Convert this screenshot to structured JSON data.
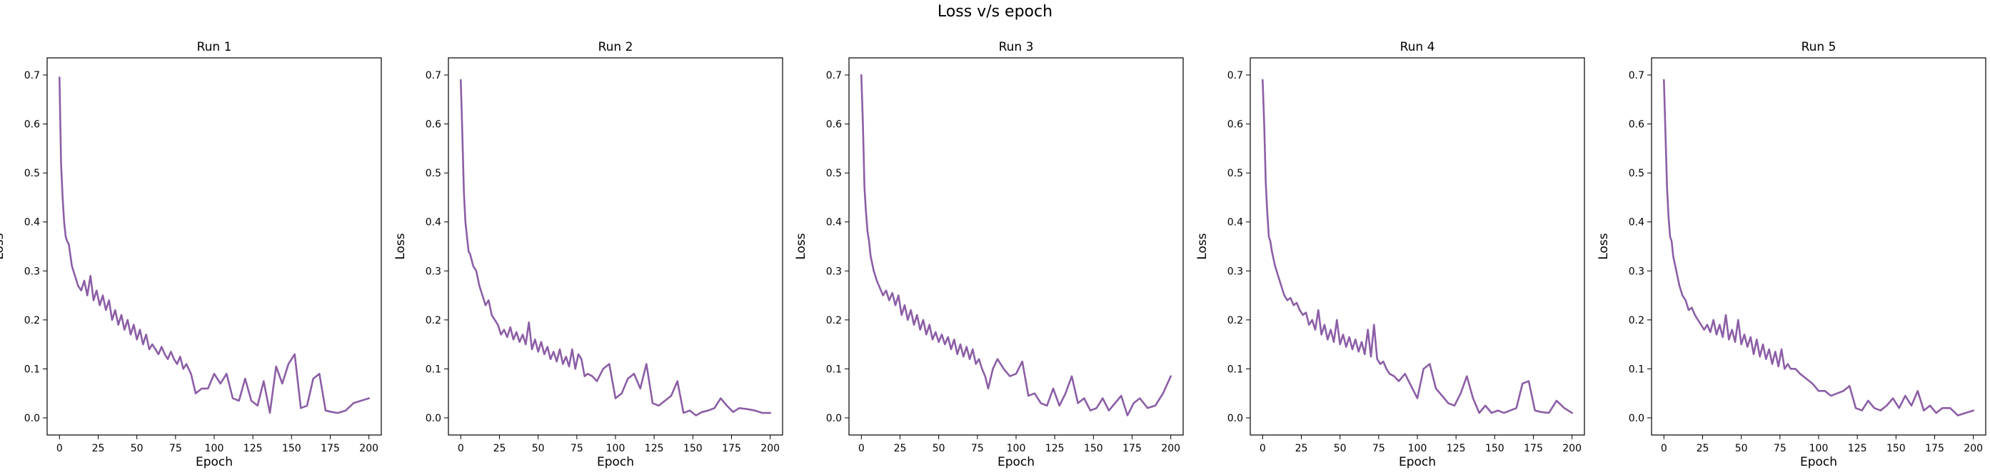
{
  "figure": {
    "suptitle": "Loss v/s epoch"
  },
  "chart_data": [
    {
      "type": "line",
      "title": "Run 1",
      "xlabel": "Epoch",
      "ylabel": "Loss",
      "xlim": [
        -8,
        208
      ],
      "ylim": [
        -0.035,
        0.735
      ],
      "xticks": [
        0,
        25,
        50,
        75,
        100,
        125,
        150,
        175,
        200
      ],
      "yticks": [
        0.0,
        0.1,
        0.2,
        0.3,
        0.4,
        0.5,
        0.6,
        0.7
      ],
      "color": "#8c5ea6",
      "grid": false,
      "series": [
        {
          "x": [
            0,
            1,
            2,
            3,
            4,
            5,
            6,
            8,
            10,
            12,
            14,
            16,
            18,
            20,
            22,
            24,
            26,
            28,
            30,
            32,
            34,
            36,
            38,
            40,
            42,
            44,
            46,
            48,
            50,
            52,
            54,
            56,
            58,
            60,
            62,
            64,
            66,
            68,
            70,
            72,
            74,
            76,
            78,
            80,
            82,
            85,
            88,
            92,
            96,
            100,
            104,
            108,
            112,
            116,
            120,
            124,
            128,
            132,
            136,
            140,
            144,
            148,
            152,
            156,
            160,
            164,
            168,
            172,
            176,
            180,
            185,
            190,
            195,
            200
          ],
          "y": [
            0.695,
            0.52,
            0.45,
            0.4,
            0.37,
            0.36,
            0.355,
            0.31,
            0.29,
            0.27,
            0.26,
            0.28,
            0.25,
            0.29,
            0.24,
            0.26,
            0.23,
            0.25,
            0.22,
            0.24,
            0.2,
            0.22,
            0.19,
            0.21,
            0.18,
            0.2,
            0.17,
            0.19,
            0.16,
            0.18,
            0.15,
            0.17,
            0.14,
            0.15,
            0.14,
            0.13,
            0.145,
            0.13,
            0.12,
            0.135,
            0.12,
            0.11,
            0.125,
            0.1,
            0.11,
            0.09,
            0.05,
            0.06,
            0.06,
            0.09,
            0.07,
            0.09,
            0.04,
            0.035,
            0.08,
            0.035,
            0.025,
            0.075,
            0.01,
            0.105,
            0.07,
            0.11,
            0.13,
            0.02,
            0.025,
            0.08,
            0.09,
            0.015,
            0.012,
            0.01,
            0.015,
            0.03,
            0.035,
            0.04
          ]
        }
      ]
    },
    {
      "type": "line",
      "title": "Run 2",
      "xlabel": "Epoch",
      "ylabel": "Loss",
      "xlim": [
        -8,
        208
      ],
      "ylim": [
        -0.035,
        0.735
      ],
      "xticks": [
        0,
        25,
        50,
        75,
        100,
        125,
        150,
        175,
        200
      ],
      "yticks": [
        0.0,
        0.1,
        0.2,
        0.3,
        0.4,
        0.5,
        0.6,
        0.7
      ],
      "color": "#8c5ea6",
      "grid": false,
      "series": [
        {
          "x": [
            0,
            1,
            2,
            3,
            4,
            5,
            6,
            8,
            10,
            12,
            14,
            16,
            18,
            20,
            22,
            24,
            26,
            28,
            30,
            32,
            34,
            36,
            38,
            40,
            42,
            44,
            46,
            48,
            50,
            52,
            54,
            56,
            58,
            60,
            62,
            64,
            66,
            68,
            70,
            72,
            74,
            76,
            78,
            80,
            82,
            85,
            88,
            92,
            96,
            100,
            104,
            108,
            112,
            116,
            120,
            124,
            128,
            132,
            136,
            140,
            144,
            148,
            152,
            156,
            160,
            164,
            168,
            172,
            176,
            180,
            185,
            190,
            195,
            200
          ],
          "y": [
            0.69,
            0.58,
            0.46,
            0.4,
            0.37,
            0.34,
            0.335,
            0.31,
            0.3,
            0.27,
            0.25,
            0.23,
            0.24,
            0.21,
            0.2,
            0.19,
            0.17,
            0.18,
            0.165,
            0.185,
            0.16,
            0.175,
            0.155,
            0.17,
            0.15,
            0.195,
            0.14,
            0.16,
            0.135,
            0.155,
            0.13,
            0.145,
            0.12,
            0.135,
            0.115,
            0.14,
            0.11,
            0.125,
            0.105,
            0.14,
            0.1,
            0.13,
            0.12,
            0.085,
            0.09,
            0.085,
            0.075,
            0.1,
            0.11,
            0.04,
            0.05,
            0.08,
            0.09,
            0.06,
            0.11,
            0.03,
            0.025,
            0.035,
            0.045,
            0.075,
            0.01,
            0.015,
            0.005,
            0.012,
            0.015,
            0.02,
            0.04,
            0.025,
            0.012,
            0.02,
            0.018,
            0.015,
            0.01,
            0.01
          ]
        }
      ]
    },
    {
      "type": "line",
      "title": "Run 3",
      "xlabel": "Epoch",
      "ylabel": "Loss",
      "xlim": [
        -8,
        208
      ],
      "ylim": [
        -0.035,
        0.735
      ],
      "xticks": [
        0,
        25,
        50,
        75,
        100,
        125,
        150,
        175,
        200
      ],
      "yticks": [
        0.0,
        0.1,
        0.2,
        0.3,
        0.4,
        0.5,
        0.6,
        0.7
      ],
      "color": "#8c5ea6",
      "grid": false,
      "series": [
        {
          "x": [
            0,
            1,
            2,
            3,
            4,
            5,
            6,
            8,
            10,
            12,
            14,
            16,
            18,
            20,
            22,
            24,
            26,
            28,
            30,
            32,
            34,
            36,
            38,
            40,
            42,
            44,
            46,
            48,
            50,
            52,
            54,
            56,
            58,
            60,
            62,
            64,
            66,
            68,
            70,
            72,
            74,
            76,
            78,
            80,
            82,
            85,
            88,
            92,
            96,
            100,
            104,
            108,
            112,
            116,
            120,
            124,
            128,
            132,
            136,
            140,
            144,
            148,
            152,
            156,
            160,
            164,
            168,
            172,
            176,
            180,
            185,
            190,
            195,
            200
          ],
          "y": [
            0.7,
            0.6,
            0.47,
            0.42,
            0.38,
            0.36,
            0.33,
            0.3,
            0.28,
            0.265,
            0.25,
            0.26,
            0.24,
            0.255,
            0.23,
            0.25,
            0.21,
            0.23,
            0.2,
            0.22,
            0.19,
            0.21,
            0.18,
            0.2,
            0.17,
            0.19,
            0.16,
            0.175,
            0.155,
            0.17,
            0.15,
            0.165,
            0.14,
            0.16,
            0.13,
            0.15,
            0.125,
            0.145,
            0.12,
            0.14,
            0.11,
            0.12,
            0.1,
            0.085,
            0.06,
            0.1,
            0.12,
            0.1,
            0.085,
            0.09,
            0.115,
            0.045,
            0.05,
            0.03,
            0.025,
            0.06,
            0.025,
            0.05,
            0.085,
            0.03,
            0.04,
            0.015,
            0.02,
            0.04,
            0.015,
            0.03,
            0.045,
            0.005,
            0.03,
            0.04,
            0.02,
            0.025,
            0.05,
            0.085
          ]
        }
      ]
    },
    {
      "type": "line",
      "title": "Run 4",
      "xlabel": "Epoch",
      "ylabel": "Loss",
      "xlim": [
        -8,
        208
      ],
      "ylim": [
        -0.035,
        0.735
      ],
      "xticks": [
        0,
        25,
        50,
        75,
        100,
        125,
        150,
        175,
        200
      ],
      "yticks": [
        0.0,
        0.1,
        0.2,
        0.3,
        0.4,
        0.5,
        0.6,
        0.7
      ],
      "color": "#8c5ea6",
      "grid": false,
      "series": [
        {
          "x": [
            0,
            1,
            2,
            3,
            4,
            5,
            6,
            8,
            10,
            12,
            14,
            16,
            18,
            20,
            22,
            24,
            26,
            28,
            30,
            32,
            34,
            36,
            38,
            40,
            42,
            44,
            46,
            48,
            50,
            52,
            54,
            56,
            58,
            60,
            62,
            64,
            66,
            68,
            70,
            72,
            74,
            76,
            78,
            80,
            82,
            85,
            88,
            92,
            96,
            100,
            104,
            108,
            112,
            116,
            120,
            124,
            128,
            132,
            136,
            140,
            144,
            148,
            152,
            156,
            160,
            164,
            168,
            172,
            176,
            180,
            185,
            190,
            195,
            200
          ],
          "y": [
            0.69,
            0.6,
            0.48,
            0.42,
            0.37,
            0.36,
            0.34,
            0.31,
            0.29,
            0.27,
            0.25,
            0.24,
            0.245,
            0.23,
            0.235,
            0.22,
            0.21,
            0.215,
            0.19,
            0.2,
            0.18,
            0.22,
            0.17,
            0.19,
            0.16,
            0.18,
            0.155,
            0.2,
            0.15,
            0.17,
            0.145,
            0.165,
            0.14,
            0.16,
            0.135,
            0.155,
            0.13,
            0.18,
            0.125,
            0.19,
            0.12,
            0.11,
            0.115,
            0.1,
            0.09,
            0.085,
            0.075,
            0.09,
            0.065,
            0.04,
            0.1,
            0.11,
            0.06,
            0.045,
            0.03,
            0.025,
            0.05,
            0.085,
            0.04,
            0.01,
            0.025,
            0.01,
            0.015,
            0.01,
            0.015,
            0.02,
            0.07,
            0.075,
            0.015,
            0.012,
            0.01,
            0.035,
            0.02,
            0.01
          ]
        }
      ]
    },
    {
      "type": "line",
      "title": "Run 5",
      "xlabel": "Epoch",
      "ylabel": "Loss",
      "xlim": [
        -8,
        208
      ],
      "ylim": [
        -0.035,
        0.735
      ],
      "xticks": [
        0,
        25,
        50,
        75,
        100,
        125,
        150,
        175,
        200
      ],
      "yticks": [
        0.0,
        0.1,
        0.2,
        0.3,
        0.4,
        0.5,
        0.6,
        0.7
      ],
      "color": "#8c5ea6",
      "grid": false,
      "series": [
        {
          "x": [
            0,
            1,
            2,
            3,
            4,
            5,
            6,
            8,
            10,
            12,
            14,
            16,
            18,
            20,
            22,
            24,
            26,
            28,
            30,
            32,
            34,
            36,
            38,
            40,
            42,
            44,
            46,
            48,
            50,
            52,
            54,
            56,
            58,
            60,
            62,
            64,
            66,
            68,
            70,
            72,
            74,
            76,
            78,
            80,
            82,
            85,
            88,
            92,
            96,
            100,
            104,
            108,
            112,
            116,
            120,
            124,
            128,
            132,
            136,
            140,
            144,
            148,
            152,
            156,
            160,
            164,
            168,
            172,
            176,
            180,
            185,
            190,
            195,
            200
          ],
          "y": [
            0.69,
            0.58,
            0.47,
            0.41,
            0.37,
            0.36,
            0.33,
            0.3,
            0.27,
            0.25,
            0.24,
            0.22,
            0.225,
            0.21,
            0.2,
            0.19,
            0.18,
            0.19,
            0.175,
            0.2,
            0.17,
            0.19,
            0.165,
            0.21,
            0.16,
            0.18,
            0.155,
            0.2,
            0.15,
            0.17,
            0.145,
            0.165,
            0.13,
            0.16,
            0.125,
            0.15,
            0.12,
            0.14,
            0.11,
            0.135,
            0.105,
            0.14,
            0.1,
            0.11,
            0.1,
            0.1,
            0.09,
            0.08,
            0.07,
            0.055,
            0.055,
            0.045,
            0.05,
            0.055,
            0.065,
            0.02,
            0.015,
            0.035,
            0.02,
            0.015,
            0.025,
            0.04,
            0.02,
            0.045,
            0.025,
            0.055,
            0.015,
            0.025,
            0.01,
            0.02,
            0.02,
            0.005,
            0.01,
            0.015
          ]
        }
      ]
    }
  ]
}
